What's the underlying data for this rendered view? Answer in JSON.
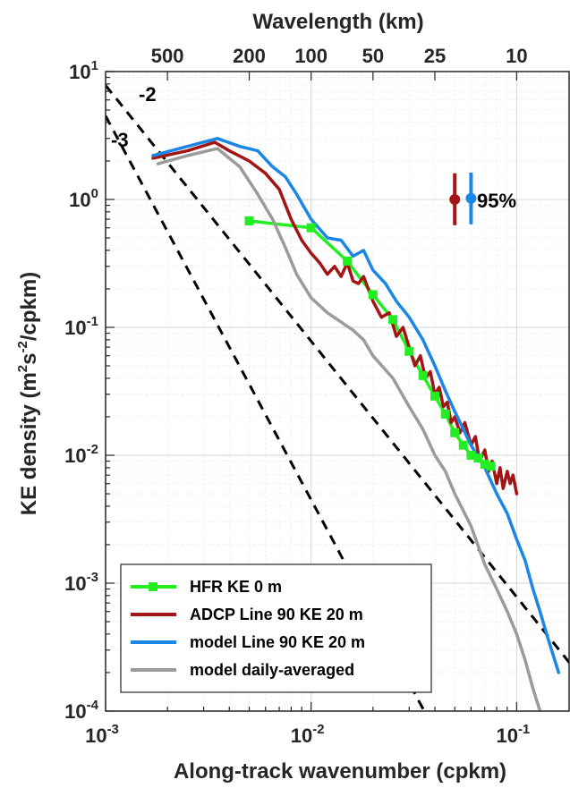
{
  "chart_data": {
    "type": "line",
    "scale": "log-log",
    "xlabel": "Along-track wavenumber (cpkm)",
    "ylabel_parts": [
      "KE density (m",
      "2",
      "s",
      "-2",
      "/cpkm)"
    ],
    "top_xlabel": "Wavelength (km)",
    "xlim": [
      0.001,
      0.18
    ],
    "ylim": [
      0.0001,
      10
    ],
    "grid": true,
    "legend_position": "bottom-left",
    "x_ticks": [
      {
        "v": 0.001,
        "base": "10",
        "exp": "-3"
      },
      {
        "v": 0.01,
        "base": "10",
        "exp": "-2"
      },
      {
        "v": 0.1,
        "base": "10",
        "exp": "-1"
      }
    ],
    "y_ticks": [
      {
        "v": 10,
        "base": "10",
        "exp": "1"
      },
      {
        "v": 1,
        "base": "10",
        "exp": "0"
      },
      {
        "v": 0.1,
        "base": "10",
        "exp": "-1"
      },
      {
        "v": 0.01,
        "base": "10",
        "exp": "-2"
      },
      {
        "v": 0.001,
        "base": "10",
        "exp": "-3"
      },
      {
        "v": 0.0001,
        "base": "10",
        "exp": "-4"
      }
    ],
    "top_ticks": [
      {
        "label": "500",
        "wavelength_km": 500
      },
      {
        "label": "200",
        "wavelength_km": 200
      },
      {
        "label": "100",
        "wavelength_km": 100
      },
      {
        "label": "50",
        "wavelength_km": 50
      },
      {
        "label": "25",
        "wavelength_km": 25
      },
      {
        "label": "10",
        "wavelength_km": 10
      }
    ],
    "reference_lines": [
      {
        "label": "-2",
        "slope": -2,
        "x": [
          0.001,
          0.2
        ],
        "y": [
          7.8,
          0.000195
        ]
      },
      {
        "label": "-3",
        "slope": -3,
        "x": [
          0.001,
          0.04
        ],
        "y": [
          4.5,
          7e-05
        ]
      }
    ],
    "confidence": {
      "label": "95%",
      "bars": [
        {
          "x": 0.05,
          "y": 1.0,
          "ylow": 0.63,
          "yhigh": 1.6,
          "color": "#a31515"
        },
        {
          "x": 0.06,
          "y": 1.02,
          "ylow": 0.64,
          "yhigh": 1.62,
          "color": "#1a87e6"
        }
      ]
    },
    "series": [
      {
        "name": "HFR KE 0 m",
        "color": "#22ee22",
        "marker": "square",
        "width": 3.5,
        "x": [
          0.005,
          0.01,
          0.015,
          0.02,
          0.025,
          0.03,
          0.035,
          0.04,
          0.045,
          0.05,
          0.055,
          0.06,
          0.065,
          0.07,
          0.075
        ],
        "y": [
          0.68,
          0.6,
          0.33,
          0.18,
          0.115,
          0.065,
          0.042,
          0.029,
          0.021,
          0.015,
          0.012,
          0.01,
          0.0095,
          0.0085,
          0.0082
        ]
      },
      {
        "name": "ADCP Line 90 KE 20 m",
        "color": "#a31515",
        "marker": "none",
        "width": 3.5,
        "x": [
          0.0017,
          0.0025,
          0.0034,
          0.004,
          0.005,
          0.006,
          0.007,
          0.008,
          0.009,
          0.01,
          0.011,
          0.012,
          0.013,
          0.014,
          0.015,
          0.016,
          0.017,
          0.018,
          0.02,
          0.022,
          0.024,
          0.026,
          0.028,
          0.03,
          0.032,
          0.034,
          0.036,
          0.038,
          0.04,
          0.042,
          0.044,
          0.046,
          0.048,
          0.05,
          0.053,
          0.056,
          0.06,
          0.063,
          0.066,
          0.07,
          0.073,
          0.076,
          0.08,
          0.083,
          0.086,
          0.09,
          0.093,
          0.096,
          0.1
        ],
        "y": [
          2.1,
          2.4,
          2.8,
          2.4,
          2.0,
          1.6,
          1.2,
          0.7,
          0.48,
          0.38,
          0.32,
          0.26,
          0.3,
          0.25,
          0.32,
          0.23,
          0.22,
          0.25,
          0.16,
          0.12,
          0.13,
          0.085,
          0.1,
          0.07,
          0.05,
          0.06,
          0.04,
          0.045,
          0.03,
          0.034,
          0.024,
          0.026,
          0.018,
          0.02,
          0.015,
          0.018,
          0.012,
          0.014,
          0.009,
          0.011,
          0.0075,
          0.009,
          0.006,
          0.008,
          0.0055,
          0.0075,
          0.006,
          0.007,
          0.005
        ]
      },
      {
        "name": "model Line 90 KE 20 m",
        "color": "#1a87e6",
        "marker": "none",
        "width": 3.5,
        "x": [
          0.0017,
          0.0025,
          0.0035,
          0.0045,
          0.0055,
          0.0065,
          0.0075,
          0.0085,
          0.01,
          0.012,
          0.014,
          0.016,
          0.018,
          0.02,
          0.023,
          0.026,
          0.03,
          0.035,
          0.04,
          0.045,
          0.05,
          0.06,
          0.07,
          0.08,
          0.09,
          0.1,
          0.11,
          0.12,
          0.13,
          0.14,
          0.15,
          0.16
        ],
        "y": [
          2.2,
          2.6,
          3.0,
          2.6,
          2.4,
          1.8,
          1.5,
          1.1,
          0.7,
          0.5,
          0.48,
          0.36,
          0.4,
          0.28,
          0.22,
          0.16,
          0.12,
          0.08,
          0.05,
          0.032,
          0.022,
          0.012,
          0.008,
          0.005,
          0.0035,
          0.0022,
          0.0015,
          0.0009,
          0.0006,
          0.0004,
          0.00028,
          0.0002
        ]
      },
      {
        "name": "model daily-averaged",
        "color": "#9b9b9b",
        "marker": "none",
        "width": 3.5,
        "x": [
          0.0018,
          0.0025,
          0.0035,
          0.0045,
          0.0055,
          0.0065,
          0.0075,
          0.0085,
          0.01,
          0.012,
          0.014,
          0.016,
          0.018,
          0.02,
          0.025,
          0.03,
          0.035,
          0.04,
          0.045,
          0.05,
          0.06,
          0.07,
          0.08,
          0.09,
          0.1,
          0.11,
          0.12,
          0.13
        ],
        "y": [
          1.9,
          2.2,
          2.5,
          1.8,
          1.1,
          0.7,
          0.42,
          0.26,
          0.17,
          0.13,
          0.11,
          0.095,
          0.08,
          0.06,
          0.04,
          0.024,
          0.016,
          0.01,
          0.0075,
          0.005,
          0.0028,
          0.0014,
          0.0009,
          0.0006,
          0.0004,
          0.00025,
          0.00015,
          0.0001
        ]
      }
    ]
  }
}
